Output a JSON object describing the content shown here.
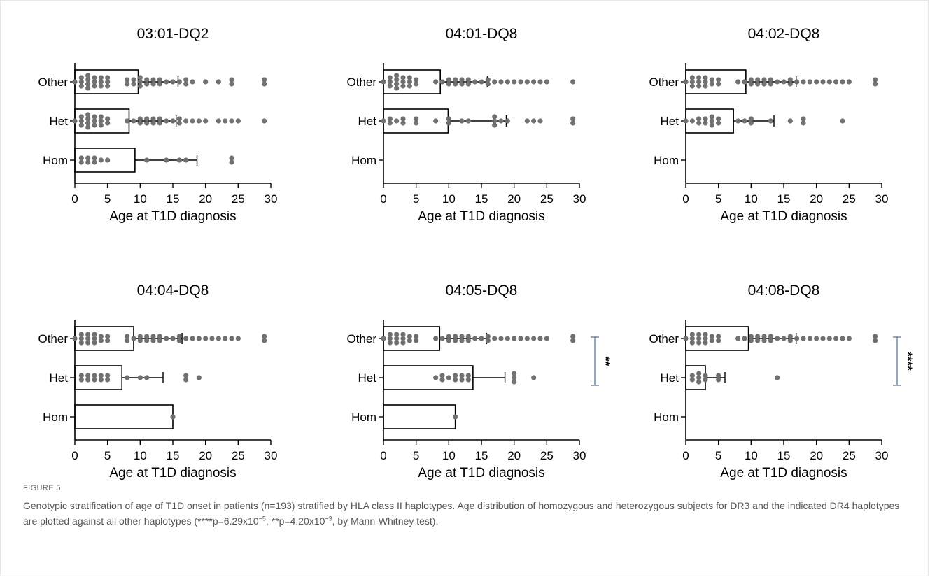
{
  "figure": {
    "label": "FIGURE 5",
    "caption_parts": [
      {
        "t": "Genotypic stratification of age of T1D onset in patients (n=193) stratified by HLA class II haplotypes. Age distribution of homozygous and heterozygous subjects for DR3 and the indicated DR4 haplotypes are plotted against all other haplotypes (****p=6.29x10"
      },
      {
        "t": "−5",
        "sup": true
      },
      {
        "t": ", **p=4.20x10"
      },
      {
        "t": "−3",
        "sup": true
      },
      {
        "t": ", by Mann-Whitney test)."
      }
    ]
  },
  "colors": {
    "points": "#707070",
    "bracket": "#4a6f9c",
    "axis": "#000000"
  },
  "chart_data": [
    {
      "type": "bar",
      "title": "03:01-DQ2",
      "xlabel": "Age at T1D diagnosis",
      "xlim": [
        0,
        30
      ],
      "xticks": [
        0,
        5,
        10,
        15,
        20,
        25,
        30
      ],
      "categories": [
        "Other",
        "Het",
        "Hom"
      ],
      "means": [
        9.7,
        8.3,
        9.2
      ],
      "sd_upper": [
        15.8,
        15.5,
        18.7
      ],
      "points": [
        [
          0,
          1,
          1,
          1,
          2,
          2,
          2,
          2,
          3,
          3,
          3,
          4,
          4,
          4,
          5,
          5,
          5,
          8,
          8,
          9,
          9,
          10,
          10,
          10,
          11,
          11,
          12,
          12,
          13,
          13,
          14,
          15,
          16,
          17,
          17,
          18,
          20,
          22,
          24,
          24,
          29,
          29
        ],
        [
          0,
          1,
          1,
          1,
          2,
          2,
          2,
          2,
          3,
          3,
          3,
          4,
          4,
          4,
          5,
          5,
          8,
          9,
          10,
          10,
          11,
          11,
          12,
          12,
          13,
          13,
          14,
          15,
          16,
          16,
          17,
          18,
          19,
          20,
          22,
          23,
          24,
          25,
          29
        ],
        [
          1,
          1,
          2,
          2,
          3,
          3,
          4,
          5,
          11,
          14,
          16,
          17,
          24,
          24
        ]
      ],
      "significance": null
    },
    {
      "type": "bar",
      "title": "04:01-DQ8",
      "xlabel": "Age at T1D diagnosis",
      "xlim": [
        0,
        30
      ],
      "xticks": [
        0,
        5,
        10,
        15,
        20,
        25,
        30
      ],
      "categories": [
        "Other",
        "Het",
        "Hom"
      ],
      "means": [
        8.7,
        9.9,
        null
      ],
      "sd_upper": [
        15.9,
        18.8,
        null
      ],
      "points": [
        [
          0,
          1,
          1,
          1,
          2,
          2,
          2,
          2,
          3,
          3,
          3,
          4,
          4,
          4,
          5,
          5,
          8,
          9,
          10,
          10,
          11,
          11,
          12,
          12,
          13,
          13,
          14,
          15,
          16,
          16,
          17,
          18,
          19,
          20,
          21,
          22,
          23,
          24,
          25,
          29
        ],
        [
          0,
          1,
          1,
          2,
          3,
          3,
          5,
          5,
          8,
          10,
          10,
          12,
          13,
          17,
          17,
          17,
          18,
          19,
          22,
          23,
          24,
          29,
          29
        ],
        []
      ],
      "significance": null
    },
    {
      "type": "bar",
      "title": "04:02-DQ8",
      "xlabel": "Age at T1D diagnosis",
      "xlim": [
        0,
        30
      ],
      "xticks": [
        0,
        5,
        10,
        15,
        20,
        25,
        30
      ],
      "categories": [
        "Other",
        "Het",
        "Hom"
      ],
      "means": [
        9.2,
        7.3,
        null
      ],
      "sd_upper": [
        16.9,
        13.5,
        null
      ],
      "points": [
        [
          0,
          1,
          1,
          1,
          2,
          2,
          2,
          3,
          3,
          3,
          4,
          4,
          5,
          5,
          8,
          9,
          10,
          10,
          11,
          11,
          12,
          12,
          13,
          13,
          14,
          15,
          16,
          16,
          17,
          18,
          19,
          20,
          21,
          22,
          23,
          24,
          25,
          29,
          29
        ],
        [
          0,
          1,
          2,
          2,
          3,
          3,
          4,
          4,
          4,
          5,
          5,
          8,
          9,
          10,
          10,
          13,
          16,
          18,
          18,
          24
        ],
        []
      ],
      "significance": null
    },
    {
      "type": "bar",
      "title": "04:04-DQ8",
      "xlabel": "Age at T1D diagnosis",
      "xlim": [
        0,
        30
      ],
      "xticks": [
        0,
        5,
        10,
        15,
        20,
        25,
        30
      ],
      "categories": [
        "Other",
        "Het",
        "Hom"
      ],
      "means": [
        9.0,
        7.2,
        15.0
      ],
      "sd_upper": [
        16.4,
        13.5,
        null
      ],
      "points": [
        [
          0,
          1,
          1,
          1,
          2,
          2,
          2,
          3,
          3,
          3,
          4,
          4,
          5,
          5,
          8,
          8,
          9,
          10,
          10,
          11,
          11,
          12,
          12,
          13,
          13,
          14,
          15,
          16,
          16,
          17,
          18,
          19,
          20,
          21,
          22,
          23,
          24,
          25,
          29,
          29
        ],
        [
          1,
          1,
          2,
          2,
          3,
          3,
          4,
          4,
          5,
          5,
          8,
          10,
          11,
          17,
          17,
          19
        ],
        [
          15
        ]
      ],
      "significance": null
    },
    {
      "type": "bar",
      "title": "04:05-DQ8",
      "xlabel": "Age at T1D diagnosis",
      "xlim": [
        0,
        30
      ],
      "xticks": [
        0,
        5,
        10,
        15,
        20,
        25,
        30
      ],
      "categories": [
        "Other",
        "Het",
        "Hom"
      ],
      "means": [
        8.6,
        13.7,
        11.0
      ],
      "sd_upper": [
        15.8,
        18.6,
        null
      ],
      "points": [
        [
          0,
          1,
          1,
          1,
          2,
          2,
          2,
          3,
          3,
          3,
          4,
          4,
          5,
          5,
          8,
          9,
          10,
          10,
          11,
          11,
          12,
          12,
          13,
          13,
          14,
          15,
          16,
          16,
          17,
          18,
          19,
          20,
          21,
          22,
          23,
          24,
          25,
          29,
          29
        ],
        [
          8,
          9,
          9,
          10,
          11,
          11,
          12,
          12,
          13,
          13,
          20,
          20,
          20,
          23
        ],
        [
          11
        ]
      ],
      "significance": "**"
    },
    {
      "type": "bar",
      "title": "04:08-DQ8",
      "xlabel": "Age at T1D diagnosis",
      "xlim": [
        0,
        30
      ],
      "xticks": [
        0,
        5,
        10,
        15,
        20,
        25,
        30
      ],
      "categories": [
        "Other",
        "Het",
        "Hom"
      ],
      "means": [
        9.6,
        3.0,
        null
      ],
      "sd_upper": [
        16.9,
        6.0,
        null
      ],
      "points": [
        [
          0,
          1,
          1,
          1,
          2,
          2,
          2,
          3,
          3,
          3,
          4,
          4,
          5,
          5,
          8,
          9,
          10,
          10,
          11,
          11,
          12,
          12,
          13,
          13,
          14,
          15,
          16,
          16,
          17,
          18,
          19,
          20,
          21,
          22,
          23,
          24,
          25,
          29,
          29
        ],
        [
          1,
          1,
          2,
          2,
          2,
          3,
          3,
          5,
          5,
          14
        ],
        []
      ],
      "significance": "****"
    }
  ]
}
